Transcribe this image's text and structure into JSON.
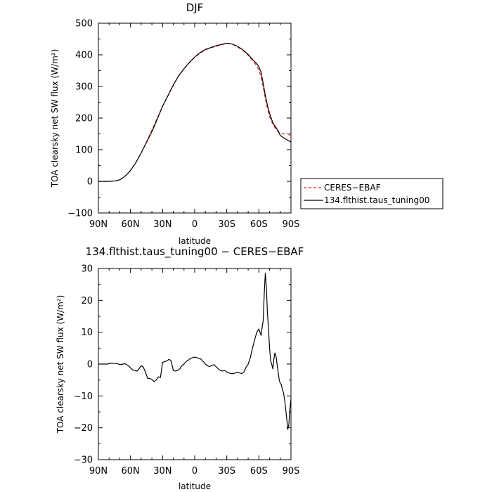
{
  "chart_data": [
    {
      "type": "line",
      "title": "DJF",
      "xlabel": "latitude",
      "ylabel": "TOA clearsky net SW flux (W/m²)",
      "xlim": [
        90,
        -90
      ],
      "ylim": [
        -100,
        500
      ],
      "xticks": [
        {
          "value": 90,
          "label": "90N"
        },
        {
          "value": 60,
          "label": "60N"
        },
        {
          "value": 30,
          "label": "30N"
        },
        {
          "value": 0,
          "label": "0"
        },
        {
          "value": -30,
          "label": "30S"
        },
        {
          "value": -60,
          "label": "60S"
        },
        {
          "value": -90,
          "label": "90S"
        }
      ],
      "yticks": [
        {
          "value": 500,
          "label": "500"
        },
        {
          "value": 400,
          "label": "400"
        },
        {
          "value": 300,
          "label": "300"
        },
        {
          "value": 200,
          "label": "200"
        },
        {
          "value": 100,
          "label": "100"
        },
        {
          "value": 0,
          "label": "0"
        },
        {
          "value": -100,
          "label": "−100"
        }
      ],
      "legend": {
        "placement": "right",
        "entries": [
          {
            "name": "CERES−EBAF",
            "color": "#e41a1c",
            "dash": true
          },
          {
            "name": "134.flthist.taus_tuning00",
            "color": "#000000",
            "dash": false
          }
        ]
      },
      "series": [
        {
          "name": "CERES−EBAF",
          "color": "#e41a1c",
          "dashed": true,
          "x": [
            90,
            85,
            80,
            75,
            72,
            70,
            68,
            66,
            64,
            62,
            60,
            55,
            50,
            45,
            40,
            35,
            30,
            25,
            20,
            15,
            10,
            5,
            0,
            -5,
            -10,
            -15,
            -20,
            -25,
            -30,
            -35,
            -40,
            -45,
            -50,
            -55,
            -58,
            -60,
            -62,
            -64,
            -66,
            -68,
            -70,
            -72,
            -74,
            -76,
            -78,
            -80,
            -82,
            -84,
            -86,
            -88,
            -90
          ],
          "y": [
            0,
            0,
            0,
            1,
            3,
            5,
            9,
            14,
            20,
            27,
            35,
            60,
            90,
            125,
            162,
            200,
            237,
            270,
            303,
            333,
            355,
            375,
            392,
            405,
            416,
            422,
            427,
            432,
            436,
            434,
            425,
            414,
            399,
            378,
            366,
            352,
            332,
            298,
            262,
            230,
            205,
            188,
            175,
            165,
            156,
            151,
            150,
            150,
            152,
            148,
            140
          ]
        },
        {
          "name": "134.flthist.taus_tuning00",
          "color": "#000000",
          "dashed": false,
          "x": [
            90,
            85,
            80,
            75,
            72,
            70,
            68,
            66,
            64,
            62,
            60,
            55,
            50,
            45,
            40,
            35,
            30,
            25,
            20,
            15,
            10,
            5,
            0,
            -5,
            -10,
            -15,
            -20,
            -25,
            -30,
            -35,
            -40,
            -45,
            -50,
            -55,
            -58,
            -60,
            -62,
            -64,
            -66,
            -68,
            -70,
            -72,
            -74,
            -76,
            -78,
            -80,
            -82,
            -84,
            -86,
            -88,
            -90
          ],
          "y": [
            0,
            0,
            0,
            1,
            3,
            5,
            9,
            14,
            20,
            27,
            34,
            59,
            90,
            123,
            157,
            196,
            238,
            271,
            305,
            334,
            356,
            376,
            393,
            407,
            417,
            423,
            429,
            433,
            437,
            434,
            427,
            416,
            401,
            382,
            372,
            362,
            345,
            310,
            272,
            240,
            215,
            195,
            180,
            170,
            160,
            145,
            140,
            136,
            132,
            128,
            124
          ]
        }
      ]
    },
    {
      "type": "line",
      "title": "134.flthist.taus_tuning00 − CERES−EBAF",
      "xlabel": "latitude",
      "ylabel": "TOA clearsky net SW flux (W/m²)",
      "xlim": [
        90,
        -90
      ],
      "ylim": [
        -30,
        30
      ],
      "xticks": [
        {
          "value": 90,
          "label": "90N"
        },
        {
          "value": 60,
          "label": "60N"
        },
        {
          "value": 30,
          "label": "30N"
        },
        {
          "value": 0,
          "label": "0"
        },
        {
          "value": -30,
          "label": "30S"
        },
        {
          "value": -60,
          "label": "60S"
        },
        {
          "value": -90,
          "label": "90S"
        }
      ],
      "yticks": [
        {
          "value": 30,
          "label": "30"
        },
        {
          "value": 20,
          "label": "20"
        },
        {
          "value": 10,
          "label": "10"
        },
        {
          "value": 0,
          "label": "0"
        },
        {
          "value": -10,
          "label": "−10"
        },
        {
          "value": -20,
          "label": "−20"
        },
        {
          "value": -30,
          "label": "−30"
        }
      ],
      "series": [
        {
          "color": "#000000",
          "dashed": false,
          "x": [
            90,
            82,
            78,
            75,
            72,
            70,
            67,
            65,
            62,
            60,
            58,
            56,
            54,
            52,
            50,
            48,
            46,
            44,
            42,
            40,
            38,
            36,
            34,
            32,
            30,
            28,
            26,
            24,
            22,
            20,
            18,
            16,
            14,
            12,
            10,
            8,
            6,
            4,
            2,
            0,
            -2,
            -4,
            -6,
            -8,
            -10,
            -12,
            -14,
            -16,
            -18,
            -20,
            -22,
            -24,
            -26,
            -28,
            -30,
            -32,
            -34,
            -36,
            -38,
            -40,
            -42,
            -44,
            -46,
            -48,
            -50,
            -52,
            -54,
            -56,
            -58,
            -60,
            -61,
            -62,
            -63,
            -64,
            -65,
            -66,
            -67,
            -68,
            -69,
            -70,
            -71,
            -72,
            -73,
            -74,
            -75,
            -76,
            -77,
            -78,
            -79,
            -80,
            -81,
            -82,
            -83,
            -84,
            -85,
            -86,
            -87,
            -88,
            -89,
            -90
          ],
          "y": [
            0,
            0,
            0.3,
            0.2,
            0.1,
            -0.2,
            0,
            0.1,
            -0.5,
            -1.2,
            -1.8,
            -2.0,
            -2.2,
            -1.5,
            -0.5,
            -1.0,
            -2.5,
            -4.5,
            -4.5,
            -4.8,
            -5.5,
            -5.0,
            -4.0,
            -4.2,
            0.5,
            0.8,
            1.0,
            1.5,
            1.0,
            -2.0,
            -2.2,
            -2.0,
            -1.5,
            -0.5,
            0,
            0.8,
            1.2,
            1.8,
            2.0,
            2.2,
            2.0,
            1.8,
            1.5,
            0.8,
            0,
            -0.5,
            -0.8,
            -0.4,
            -0.2,
            -0.8,
            -1.5,
            -2.0,
            -2.2,
            -2.0,
            -2.5,
            -2.8,
            -3.0,
            -3.0,
            -2.8,
            -2.5,
            -2.8,
            -3.0,
            -2.5,
            -1.0,
            0,
            2.0,
            5.0,
            7.5,
            10.0,
            11.0,
            10.0,
            9.0,
            11.5,
            13.5,
            22.0,
            28.5,
            24.0,
            16.0,
            11.0,
            5.0,
            1.0,
            0,
            -1.5,
            1.5,
            3.5,
            2.5,
            0,
            -2.5,
            -5.0,
            -6.0,
            -6.5,
            -8.0,
            -9.0,
            -11.0,
            -14.0,
            -17.0,
            -20.5,
            -19.0,
            -14.0,
            -11.0
          ]
        }
      ]
    }
  ]
}
